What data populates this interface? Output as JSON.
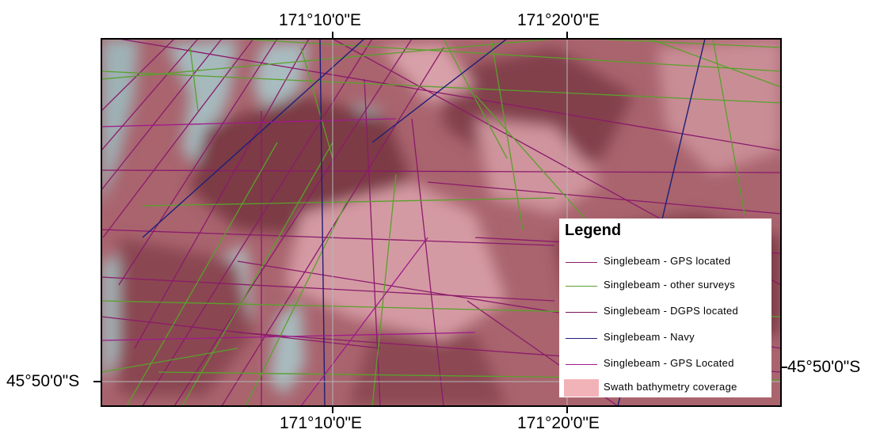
{
  "graticule": {
    "top_left_label": "171°10'0\"E",
    "top_right_label": "171°20'0\"E",
    "bottom_left_label": "171°10'0\"E",
    "bottom_right_label": "171°20'0\"E",
    "left_label": "45°50'0\"S",
    "right_label": "-45°50'0\"S"
  },
  "legend": {
    "title": "Legend",
    "items": [
      {
        "label": "Singlebeam - GPS located",
        "color": "#8b1a6b",
        "kind": "line"
      },
      {
        "label": "Singlebeam - other surveys",
        "color": "#5aa02c",
        "kind": "line"
      },
      {
        "label": "Singlebeam - DGPS located",
        "color": "#7a1060",
        "kind": "line"
      },
      {
        "label": "Singlebeam - Navy",
        "color": "#1e1e7a",
        "kind": "line"
      },
      {
        "label": "Singlebeam - GPS Located",
        "color": "#a01a8c",
        "kind": "line"
      },
      {
        "label": "Swath bathymetry coverage",
        "color": "#f2b3b8",
        "kind": "fill"
      }
    ]
  },
  "colors": {
    "map_base": "#a8606a",
    "map_dark": "#7e3d48",
    "map_light": "#d9a3ab",
    "map_grey": "#9fb3b7",
    "frame": "#000000"
  }
}
